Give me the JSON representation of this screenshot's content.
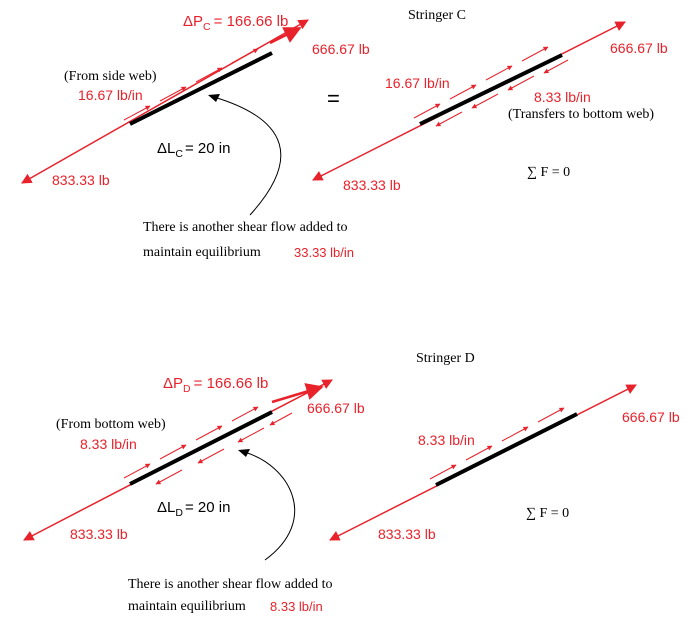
{
  "colors": {
    "accent": "#e8222b",
    "stringer": "#000000",
    "background": "#ffffff"
  },
  "top": {
    "left": {
      "delta_p_symbol": "Δ",
      "delta_p_letter": "P",
      "delta_p_sub": "C",
      "delta_p_value": "= 166.66 lb",
      "end_force": "666.67 lb",
      "source_note": "(From side web)",
      "flow_label": "16.67 lb/in",
      "delta_l_symbol": "Δ",
      "delta_l_letter": "L",
      "delta_l_sub": "C",
      "delta_l_value": "= 20 in",
      "start_force": "833.33 lb"
    },
    "equals": "=",
    "right": {
      "title": "Stringer C",
      "end_force": "666.67 lb",
      "flow_in": "16.67 lb/in",
      "flow_out": "8.33 lb/in",
      "transfer_note": "(Transfers to bottom web)",
      "start_force": "833.33 lb",
      "sum": "∑ F = 0"
    },
    "note": {
      "line1": "There is another shear flow added to",
      "line2": "maintain equilibrium",
      "value": "33.33 lb/in"
    }
  },
  "bottom": {
    "left": {
      "delta_p_symbol": "Δ",
      "delta_p_letter": "P",
      "delta_p_sub": "D",
      "delta_p_value": "= 166.66 lb",
      "end_force": "666.67 lb",
      "source_note": "(From bottom web)",
      "flow_label": "8.33 lb/in",
      "delta_l_symbol": "Δ",
      "delta_l_letter": "L",
      "delta_l_sub": "D",
      "delta_l_value": "= 20 in",
      "start_force": "833.33 lb"
    },
    "right": {
      "title": "Stringer D",
      "end_force": "666.67 lb",
      "flow_in": "8.33 lb/in",
      "start_force": "833.33 lb",
      "sum": "∑ F = 0"
    },
    "note": {
      "line1": "There is another shear flow added to",
      "line2": "maintain equilibrium",
      "value": "8.33 lb/in"
    }
  }
}
